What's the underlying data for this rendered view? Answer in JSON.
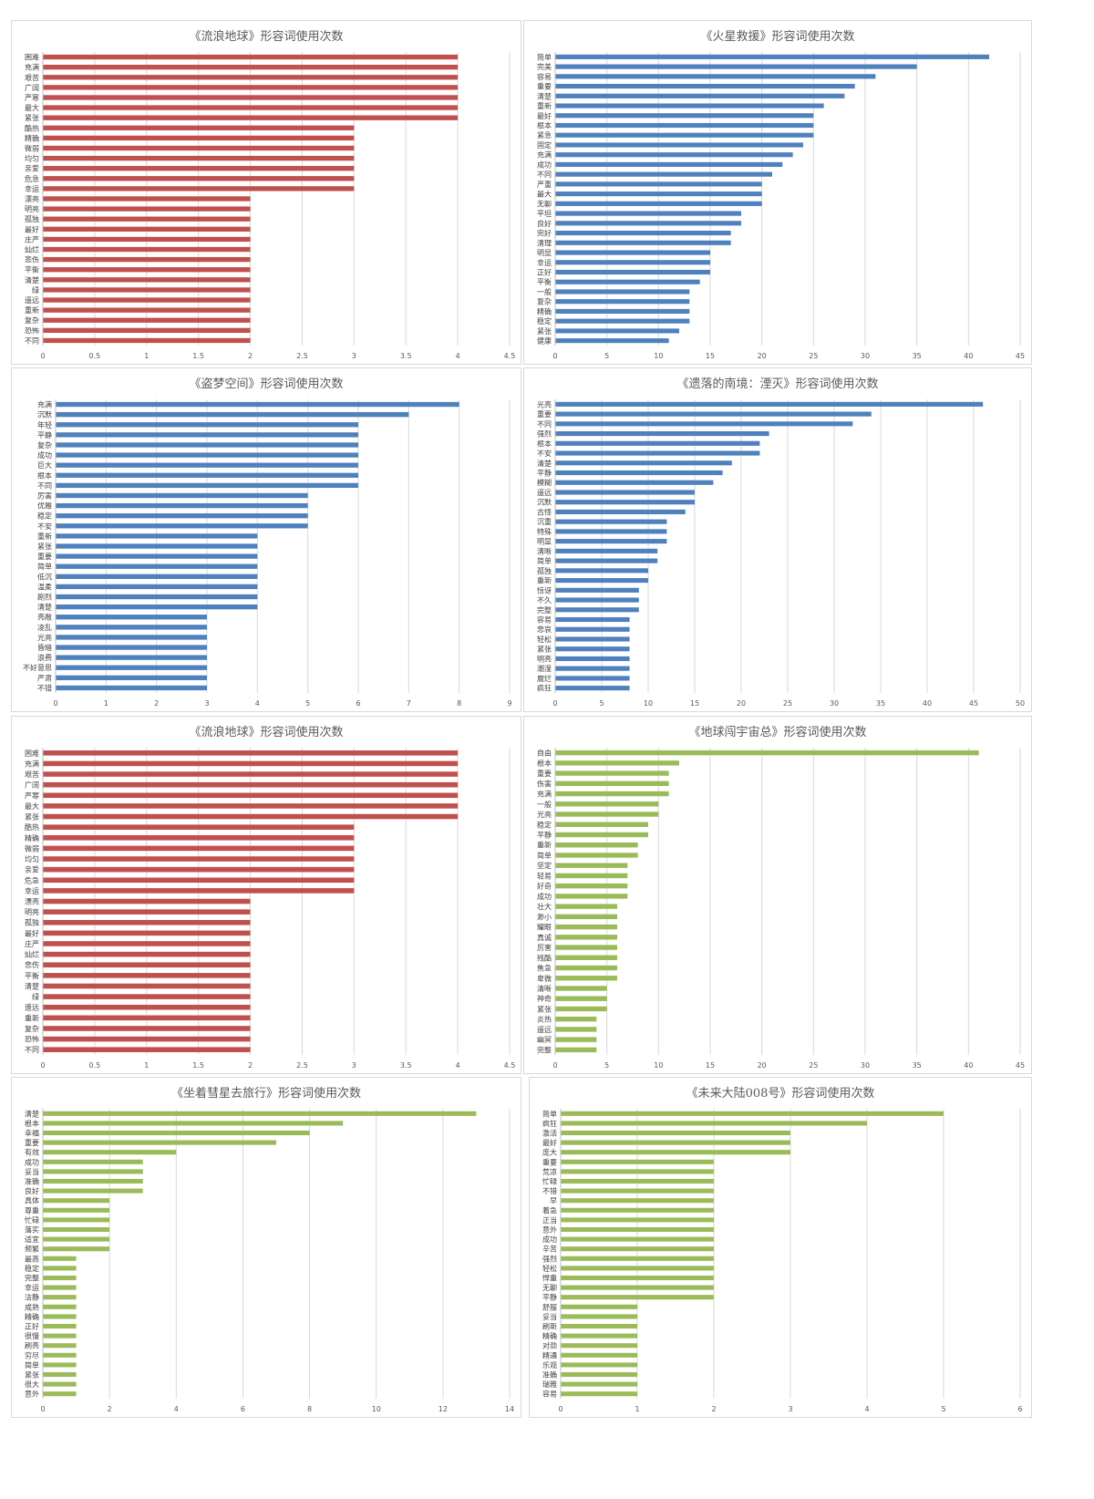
{
  "chart_data": [
    {
      "type": "bar",
      "orientation": "horizontal",
      "title": "《流浪地球》形容词使用次数",
      "color": "#c0504d",
      "categories": [
        "困难",
        "充满",
        "艰苦",
        "广阔",
        "严寒",
        "最大",
        "紧张",
        "酷热",
        "精确",
        "微弱",
        "均匀",
        "亲爱",
        "危急",
        "幸运",
        "漂亮",
        "明亮",
        "孤独",
        "最好",
        "庄严",
        "灿烂",
        "悲伤",
        "平衡",
        "清楚",
        "绿",
        "遥远",
        "重新",
        "复杂",
        "恐怖",
        "不同"
      ],
      "values": [
        4,
        4,
        4,
        4,
        4,
        4,
        4,
        3,
        3,
        3,
        3,
        3,
        3,
        3,
        2,
        2,
        2,
        2,
        2,
        2,
        2,
        2,
        2,
        2,
        2,
        2,
        2,
        2,
        2
      ],
      "xlim": [
        0,
        4.5
      ],
      "ticks": [
        "0",
        "0.5",
        "1",
        "1.5",
        "2",
        "2.5",
        "3",
        "3.5",
        "4",
        "4.5"
      ],
      "grid": "vertical"
    },
    {
      "type": "bar",
      "orientation": "horizontal",
      "title": "《火星救援》形容词使用次数",
      "color": "#4f81bd",
      "categories": [
        "简单",
        "完美",
        "容易",
        "重要",
        "清楚",
        "重新",
        "最好",
        "根本",
        "紧急",
        "固定",
        "充满",
        "成功",
        "不同",
        "严重",
        "最大",
        "无聊",
        "平坦",
        "良好",
        "完好",
        "清理",
        "明显",
        "幸运",
        "正好",
        "平衡",
        "一般",
        "复杂",
        "精确",
        "稳定",
        "紧张",
        "健康"
      ],
      "values": [
        42,
        35,
        31,
        29,
        28,
        26,
        25,
        25,
        25,
        24,
        23,
        22,
        21,
        20,
        20,
        20,
        18,
        18,
        17,
        17,
        15,
        15,
        15,
        14,
        13,
        13,
        13,
        13,
        12,
        11
      ],
      "xlim": [
        0,
        45
      ],
      "ticks": [
        "0",
        "5",
        "10",
        "15",
        "20",
        "25",
        "30",
        "35",
        "40",
        "45"
      ],
      "grid": "vertical"
    },
    {
      "type": "bar",
      "orientation": "horizontal",
      "title": "《盗梦空间》形容词使用次数",
      "color": "#4f81bd",
      "categories": [
        "充满",
        "沉默",
        "年轻",
        "平静",
        "复杂",
        "成功",
        "巨大",
        "根本",
        "不同",
        "厉害",
        "优雅",
        "稳定",
        "不安",
        "重新",
        "紧张",
        "重要",
        "简单",
        "低沉",
        "温柔",
        "剧烈",
        "清楚",
        "亮敞",
        "凌乱",
        "光亮",
        "昏暗",
        "浪费",
        "不好意思",
        "严肃",
        "不错"
      ],
      "values": [
        8,
        7,
        6,
        6,
        6,
        6,
        6,
        6,
        6,
        5,
        5,
        5,
        5,
        4,
        4,
        4,
        4,
        4,
        4,
        4,
        4,
        3,
        3,
        3,
        3,
        3,
        3,
        3,
        3
      ],
      "xlim": [
        0,
        9
      ],
      "ticks": [
        "0",
        "1",
        "2",
        "3",
        "4",
        "5",
        "6",
        "7",
        "8",
        "9"
      ],
      "grid": "vertical"
    },
    {
      "type": "bar",
      "orientation": "horizontal",
      "title": "《遗落的南境：湮灭》形容词使用次数",
      "color": "#4f81bd",
      "categories": [
        "光亮",
        "重要",
        "不同",
        "强烈",
        "根本",
        "不安",
        "清楚",
        "平静",
        "模糊",
        "遥远",
        "沉默",
        "古怪",
        "沉重",
        "特殊",
        "明显",
        "清晰",
        "简单",
        "孤独",
        "重新",
        "惊讶",
        "不久",
        "完整",
        "容易",
        "悲哀",
        "轻松",
        "紧张",
        "明亮",
        "潮湿",
        "腐烂",
        "疯狂"
      ],
      "values": [
        46,
        34,
        32,
        23,
        22,
        22,
        19,
        18,
        17,
        15,
        15,
        14,
        12,
        12,
        12,
        11,
        11,
        10,
        10,
        9,
        9,
        9,
        8,
        8,
        8,
        8,
        8,
        8,
        8,
        8
      ],
      "xlim": [
        0,
        50
      ],
      "ticks": [
        "0",
        "5",
        "10",
        "15",
        "20",
        "25",
        "30",
        "35",
        "40",
        "45",
        "50"
      ],
      "grid": "vertical"
    },
    {
      "type": "bar",
      "orientation": "horizontal",
      "title": "《流浪地球》形容词使用次数",
      "color": "#c0504d",
      "categories": [
        "困难",
        "充满",
        "艰苦",
        "广阔",
        "严寒",
        "最大",
        "紧张",
        "酷热",
        "精确",
        "微弱",
        "均匀",
        "亲爱",
        "危急",
        "幸运",
        "漂亮",
        "明亮",
        "孤独",
        "最好",
        "庄严",
        "灿烂",
        "悲伤",
        "平衡",
        "清楚",
        "绿",
        "遥远",
        "重新",
        "复杂",
        "恐怖",
        "不同"
      ],
      "values": [
        4,
        4,
        4,
        4,
        4,
        4,
        4,
        3,
        3,
        3,
        3,
        3,
        3,
        3,
        2,
        2,
        2,
        2,
        2,
        2,
        2,
        2,
        2,
        2,
        2,
        2,
        2,
        2,
        2
      ],
      "xlim": [
        0,
        4.5
      ],
      "ticks": [
        "0",
        "0.5",
        "1",
        "1.5",
        "2",
        "2.5",
        "3",
        "3.5",
        "4",
        "4.5"
      ],
      "grid": "vertical"
    },
    {
      "type": "bar",
      "orientation": "horizontal",
      "title": "《地球闯宇宙总》形容词使用次数",
      "color": "#9bbb59",
      "categories": [
        "自由",
        "根本",
        "重要",
        "伤害",
        "充满",
        "一般",
        "光亮",
        "稳定",
        "平静",
        "重新",
        "简单",
        "坚定",
        "轻易",
        "好奇",
        "成功",
        "壮大",
        "渺小",
        "耀眼",
        "真诚",
        "厉害",
        "残酷",
        "焦急",
        "卑微",
        "清晰",
        "神奇",
        "紧张",
        "炎热",
        "遥远",
        "幽冥",
        "完整"
      ],
      "values": [
        41,
        12,
        11,
        11,
        11,
        10,
        10,
        9,
        9,
        8,
        8,
        7,
        7,
        7,
        7,
        6,
        6,
        6,
        6,
        6,
        6,
        6,
        6,
        5,
        5,
        5,
        4,
        4,
        4,
        4
      ],
      "xlim": [
        0,
        45
      ],
      "ticks": [
        "0",
        "5",
        "10",
        "15",
        "20",
        "25",
        "30",
        "35",
        "40",
        "45"
      ],
      "grid": "vertical"
    },
    {
      "type": "bar",
      "orientation": "horizontal",
      "title": "《坐着彗星去旅行》形容词使用次数",
      "color": "#9bbb59",
      "categories": [
        "清楚",
        "根本",
        "幸福",
        "重要",
        "有效",
        "成功",
        "妥当",
        "准确",
        "良好",
        "具体",
        "尊重",
        "忙碌",
        "落实",
        "适宜",
        "频繁",
        "最高",
        "稳定",
        "完整",
        "幸运",
        "洁静",
        "成熟",
        "精确",
        "正好",
        "很慢",
        "刷亮",
        "穷尽",
        "简单",
        "紧张",
        "很大",
        "意外"
      ],
      "values": [
        13,
        9,
        8,
        7,
        4,
        3,
        3,
        3,
        3,
        2,
        2,
        2,
        2,
        2,
        2,
        1,
        1,
        1,
        1,
        1,
        1,
        1,
        1,
        1,
        1,
        1,
        1,
        1,
        1,
        1
      ],
      "xlim": [
        0,
        14
      ],
      "ticks": [
        "0",
        "2",
        "4",
        "6",
        "8",
        "10",
        "12",
        "14"
      ],
      "grid": "vertical"
    },
    {
      "type": "bar",
      "orientation": "horizontal",
      "title": "《未来大陆008号》形容词使用次数",
      "color": "#9bbb59",
      "categories": [
        "简单",
        "疯狂",
        "激活",
        "最好",
        "庞大",
        "重要",
        "荒凉",
        "忙碌",
        "不错",
        "早",
        "着急",
        "正当",
        "意外",
        "成功",
        "辛苦",
        "强烈",
        "轻松",
        "悍重",
        "无聊",
        "平静",
        "舒服",
        "妥当",
        "刷新",
        "精确",
        "对劲",
        "精通",
        "乐观",
        "准确",
        "瑞雅",
        "容易"
      ],
      "values": [
        5,
        4,
        3,
        3,
        3,
        2,
        2,
        2,
        2,
        2,
        2,
        2,
        2,
        2,
        2,
        2,
        2,
        2,
        2,
        2,
        1,
        1,
        1,
        1,
        1,
        1,
        1,
        1,
        1,
        1
      ],
      "xlim": [
        0,
        6
      ],
      "ticks": [
        "0",
        "1",
        "2",
        "3",
        "4",
        "5",
        "6"
      ],
      "grid": "vertical"
    }
  ]
}
